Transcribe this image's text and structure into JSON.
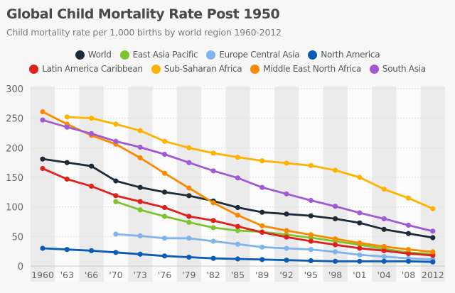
{
  "chart_data": {
    "type": "line",
    "title": "Global Child Mortality Rate Post 1950",
    "subtitle": "Child mortality rate per 1,000 births by world region 1960-2012",
    "xlabel": "",
    "ylabel": "",
    "categories": [
      "1960",
      "'63",
      "'66",
      "'70",
      "'73",
      "'76",
      "'79",
      "'82",
      "'85",
      "'89",
      "'92",
      "'95",
      "'98",
      "'01",
      "'04",
      "'08",
      "2012"
    ],
    "ylim": [
      0,
      300
    ],
    "yticks": [
      0,
      50,
      100,
      150,
      200,
      250,
      300
    ],
    "grid": true,
    "legend": "top-center",
    "series": [
      {
        "name": "World",
        "color": "#1c2b39",
        "values": [
          181,
          175,
          169,
          144,
          133,
          125,
          119,
          110,
          99,
          91,
          88,
          85,
          80,
          73,
          62,
          55,
          48
        ]
      },
      {
        "name": "East Asia Pacific",
        "color": "#7dc52e",
        "values": [
          null,
          null,
          null,
          109,
          95,
          84,
          74,
          65,
          60,
          58,
          53,
          48,
          42,
          36,
          29,
          23,
          20
        ]
      },
      {
        "name": "Europe Central Asia",
        "color": "#7fb4ec",
        "values": [
          null,
          null,
          null,
          54,
          51,
          47,
          47,
          42,
          37,
          32,
          30,
          28,
          24,
          19,
          16,
          13,
          11
        ]
      },
      {
        "name": "North America",
        "color": "#0a5cb5",
        "values": [
          30,
          28,
          26,
          23,
          20,
          17,
          15,
          13,
          12,
          11,
          10,
          9,
          8,
          8,
          8,
          8,
          7
        ]
      },
      {
        "name": "Latin America Caribbean",
        "color": "#e0201b",
        "values": [
          165,
          147,
          135,
          119,
          109,
          99,
          84,
          77,
          67,
          57,
          49,
          42,
          36,
          30,
          26,
          21,
          18
        ]
      },
      {
        "name": "Sub-Saharan Africa",
        "color": "#fdb300",
        "values": [
          null,
          252,
          250,
          240,
          229,
          211,
          200,
          191,
          184,
          178,
          174,
          170,
          162,
          150,
          130,
          115,
          97
        ]
      },
      {
        "name": "Middle East North Africa",
        "color": "#f98a00",
        "values": [
          261,
          240,
          221,
          206,
          183,
          157,
          132,
          107,
          86,
          68,
          60,
          53,
          46,
          39,
          33,
          28,
          24
        ]
      },
      {
        "name": "South Asia",
        "color": "#9f5bd6",
        "values": [
          247,
          235,
          224,
          211,
          201,
          189,
          175,
          161,
          149,
          133,
          122,
          111,
          101,
          90,
          80,
          69,
          59
        ]
      }
    ]
  }
}
